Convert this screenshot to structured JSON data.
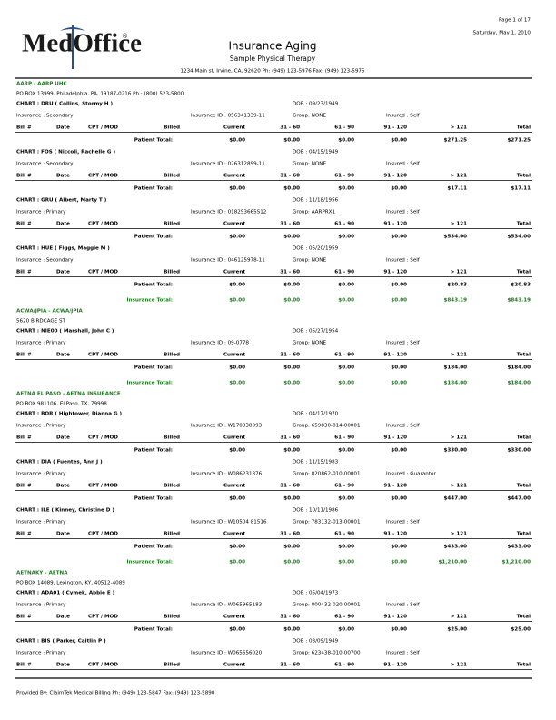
{
  "header": {
    "page": "Page 1 of 17",
    "date": "Saturday, May 1, 2010",
    "logo": "MedOffice",
    "logo_mark": "®",
    "title": "Insurance Aging",
    "subtitle": "Sample Physical Therapy",
    "address": "1234 Main st, Irvine, CA, 92620 Ph: (949) 123-5976 Fax: (949) 123-5975"
  },
  "columns": [
    "Bill #",
    "Date",
    "CPT / MOD",
    "Billed",
    "Current",
    "31 - 60",
    "61 - 90",
    "91 - 120",
    "> 121",
    "Total"
  ],
  "patient_total_label": "Patient Total:",
  "insurance_total_label": "Insurance Total:",
  "groups": [
    {
      "name": "AARP - AARP UHC",
      "address": "PO BOX 13999, Philadelphia, PA, 19187-0216 Ph : (800) 523-5800",
      "patients": [
        {
          "chart": "CHART : DRU ( Collins, Stormy H )",
          "dob": "DOB : 09/23/1949",
          "insurance": "Insurance : Secondary",
          "insurance_id": "Insurance ID : 056341339-11",
          "group": "Group: NONE",
          "insured": "Insured : Self",
          "totals": [
            "$0.00",
            "$0.00",
            "$0.00",
            "$0.00",
            "$271.25",
            "$271.25"
          ]
        },
        {
          "chart": "CHART : FOS ( Niccoli, Rachelle G )",
          "dob": "DOB : 04/15/1949",
          "insurance": "Insurance : Secondary",
          "insurance_id": "Insurance ID : 026312899-11",
          "group": "Group: NONE",
          "insured": "Insured : Self",
          "totals": [
            "$0.00",
            "$0.00",
            "$0.00",
            "$0.00",
            "$17.11",
            "$17.11"
          ]
        },
        {
          "chart": "CHART : GRU ( Albert, Marty T )",
          "dob": "DOB : 11/18/1956",
          "insurance": "Insurance : Primary",
          "insurance_id": "Insurance ID : 018253665S12",
          "group": "Group: AARPRX1",
          "insured": "Insured : Self",
          "totals": [
            "$0.00",
            "$0.00",
            "$0.00",
            "$0.00",
            "$534.00",
            "$534.00"
          ]
        },
        {
          "chart": "CHART : HUE ( Figgs, Maggie M )",
          "dob": "DOB : 05/20/1959",
          "insurance": "Insurance : Secondary",
          "insurance_id": "Insurance ID : 046125978-11",
          "group": "Group: NONE",
          "insured": "Insured : Self",
          "totals": [
            "$0.00",
            "$0.00",
            "$0.00",
            "$0.00",
            "$20.83",
            "$20.83"
          ]
        }
      ],
      "insurance_totals": [
        "$0.00",
        "$0.00",
        "$0.00",
        "$0.00",
        "$843.19",
        "$843.19"
      ]
    },
    {
      "name": "ACWA/JPIA - ACWA/JPIA",
      "address": "5620 BIRDCAGE ST",
      "patients": [
        {
          "chart": "CHART : NIE00 ( Marshall, John C )",
          "dob": "DOB : 05/27/1954",
          "insurance": "Insurance : Primary",
          "insurance_id": "Insurance ID : 09-0778",
          "group": "Group: NONE",
          "insured": "Insured : Self",
          "totals": [
            "$0.00",
            "$0.00",
            "$0.00",
            "$0.00",
            "$184.00",
            "$184.00"
          ]
        }
      ],
      "insurance_totals": [
        "$0.00",
        "$0.00",
        "$0.00",
        "$0.00",
        "$184.00",
        "$184.00"
      ]
    },
    {
      "name": "AETNA EL PASO - AETNA INSURANCE",
      "address": "PO BOX 981106, El Paso, TX, 79998",
      "patients": [
        {
          "chart": "CHART : BOR ( Hightower, Dianna G )",
          "dob": "DOB : 04/17/1970",
          "insurance": "Insurance : Primary",
          "insurance_id": "Insurance ID : W170038093",
          "group": "Group: 659830-014-00001",
          "insured": "Insured : Self",
          "totals": [
            "$0.00",
            "$0.00",
            "$0.00",
            "$0.00",
            "$330.00",
            "$330.00"
          ]
        },
        {
          "chart": "CHART : DIA ( Fuentes, Ann J )",
          "dob": "DOB : 11/15/1983",
          "insurance": "Insurance : Primary",
          "insurance_id": "Insurance ID : W086231876",
          "group": "Group: 820862-010-00001",
          "insured": "Insured : Guarantor",
          "totals": [
            "$0.00",
            "$0.00",
            "$0.00",
            "$0.00",
            "$447.00",
            "$447.00"
          ]
        },
        {
          "chart": "CHART : ILE ( Kinney, Christine D )",
          "dob": "DOB : 10/11/1986",
          "insurance": "Insurance : Primary",
          "insurance_id": "Insurance ID : W10504 81516",
          "group": "Group: 783132-013-00001",
          "insured": "Insured : Self",
          "totals": [
            "$0.00",
            "$0.00",
            "$0.00",
            "$0.00",
            "$433.00",
            "$433.00"
          ]
        }
      ],
      "insurance_totals": [
        "$0.00",
        "$0.00",
        "$0.00",
        "$0.00",
        "$1,210.00",
        "$1,210.00"
      ]
    },
    {
      "name": "AETNAKY - AETNA",
      "address": "PO BOX 14089, Lexington, KY, 40512-4089",
      "patients": [
        {
          "chart": "CHART : ADA01 ( Cymek, Abbie E )",
          "dob": "DOB : 05/04/1973",
          "insurance": "Insurance : Primary",
          "insurance_id": "Insurance ID : W065965183",
          "group": "Group: 800432-020-00001",
          "insured": "Insured : Self",
          "totals": [
            "$0.00",
            "$0.00",
            "$0.00",
            "$0.00",
            "$25.00",
            "$25.00"
          ]
        },
        {
          "chart": "CHART : BIS ( Parker, Caitlin P )",
          "dob": "DOB : 03/09/1949",
          "insurance": "Insurance : Primary",
          "insurance_id": "Insurance ID : W065656020",
          "group": "Group: 623438-010-00700",
          "insured": "Insured : Self"
        }
      ]
    }
  ],
  "footer": "Provided By: ClaimTek Medical Billing Ph: (949) 123-5847 Fax: (949) 123-5890"
}
